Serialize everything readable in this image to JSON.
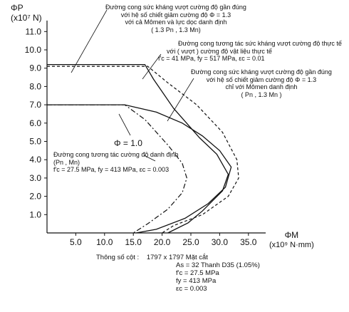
{
  "chart_data": {
    "type": "line",
    "xlabel": "ΦM",
    "xunit": "(x10⁹ N·mm)",
    "ylabel": "ΦP",
    "yunit": "(x10⁷ N)",
    "xlim": [
      0,
      38
    ],
    "ylim": [
      0,
      11.6
    ],
    "xticks": [
      "5.0",
      "10.0",
      "15.0",
      "20.0",
      "25.0",
      "30.0",
      "35.0"
    ],
    "xtick_values": [
      5,
      10,
      15,
      20,
      25,
      30,
      35
    ],
    "yticks": [
      "1.0",
      "2.0",
      "3.0",
      "4.0",
      "5.0",
      "6.0",
      "7.0",
      "8.0",
      "9.0",
      "10.0",
      "11.0"
    ],
    "ytick_values": [
      1,
      2,
      3,
      4,
      5,
      6,
      7,
      8,
      9,
      10,
      11
    ],
    "grid": false,
    "series": [
      {
        "style": "solid",
        "points": [
          [
            0,
            9.2
          ],
          [
            17,
            9.2
          ],
          [
            18.5,
            8.4
          ],
          [
            22,
            6.8
          ],
          [
            26.5,
            5.2
          ],
          [
            29.5,
            4.3
          ],
          [
            31.5,
            3.2
          ],
          [
            30.5,
            2.3
          ],
          [
            27,
            1.2
          ],
          [
            24.5,
            0.55
          ],
          [
            21,
            0
          ]
        ]
      },
      {
        "style": "dashed",
        "points": [
          [
            0,
            9.1
          ],
          [
            17.5,
            9.1
          ],
          [
            21,
            8.2
          ],
          [
            26,
            7.0
          ],
          [
            30.5,
            5.5
          ],
          [
            33,
            4.0
          ],
          [
            33.3,
            3.0
          ],
          [
            31.5,
            2.0
          ],
          [
            27,
            1.0
          ],
          [
            22,
            0.4
          ],
          [
            20,
            0
          ]
        ]
      },
      {
        "style": "solid",
        "points": [
          [
            0,
            7.0
          ],
          [
            13.5,
            7.0
          ],
          [
            19,
            6.6
          ],
          [
            23.5,
            6.0
          ],
          [
            27,
            5.3
          ],
          [
            30,
            4.5
          ],
          [
            32,
            3.6
          ],
          [
            31,
            2.5
          ],
          [
            28,
            1.6
          ],
          [
            24,
            0.8
          ],
          [
            19,
            0.2
          ],
          [
            15.5,
            0
          ]
        ]
      },
      {
        "style": "dash-dot",
        "points": [
          [
            0,
            7.0
          ],
          [
            13.5,
            7.0
          ],
          [
            17,
            6.2
          ],
          [
            21,
            4.8
          ],
          [
            23.5,
            3.8
          ],
          [
            24.3,
            3.0
          ],
          [
            23.5,
            2.2
          ],
          [
            21,
            1.3
          ],
          [
            17.5,
            0.5
          ],
          [
            15,
            0
          ]
        ]
      }
    ]
  },
  "annotations": {
    "a1": [
      "Đường cong sức kháng vượt cường độ gần đúng",
      "với hệ số chiết giảm cường độ  Φ = 1.3",
      "với cả Mômen và lực dọc danh định",
      "( 1.3 Pn , 1.3 Mn)"
    ],
    "a2": [
      "Đường cong tương tác sức kháng vượt cường độ thực tế",
      "với ( vượt ) cường độ vật liệu thực tế",
      "f'c = 41 MPa, fy = 517 MPa, εc = 0.01"
    ],
    "a3": [
      "Đường cong sức kháng vượt cường độ gần đúng",
      "với hệ số chiết giảm cường độ Φ = 1.3",
      "chỉ với Mômen danh định",
      "( Pn , 1.3 Mn )"
    ],
    "a4": [
      "Đường cong tương tác cường độ danh định",
      "(Pn , Mn)",
      "f'c = 27.5 MPa, fy = 413 MPa, εc = 0.003"
    ],
    "phi": "Φ = 1.0"
  },
  "params": {
    "label": "Thông số cột :",
    "section": "1797 x 1797  Mặt cắt",
    "rows": [
      "As = 32 Thanh D35 (1.05%)",
      "f'c = 27.5 MPa",
      "fy = 413 MPa",
      "εc = 0.003"
    ]
  }
}
